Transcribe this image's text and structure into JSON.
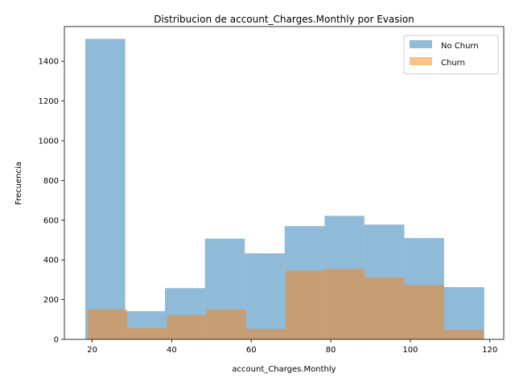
{
  "chart_data": {
    "type": "bar",
    "title": "Distribucion de account_Charges.Monthly por Evasion",
    "xlabel": "account_Charges.Monthly",
    "ylabel": "Frecuencia",
    "xlim": [
      13.0,
      123.5
    ],
    "ylim": [
      0,
      1575
    ],
    "xticks": [
      20,
      40,
      60,
      80,
      100,
      120
    ],
    "yticks": [
      0,
      200,
      400,
      600,
      800,
      1000,
      1200,
      1400
    ],
    "grid": false,
    "legend_position": "top-right",
    "series": [
      {
        "name": "No Churn",
        "color": "#1f77b4",
        "opacity": 0.5,
        "bins": [
          {
            "x0": 18.25,
            "x1": 28.3,
            "value": 1513
          },
          {
            "x0": 28.3,
            "x1": 38.3,
            "value": 142
          },
          {
            "x0": 38.3,
            "x1": 48.35,
            "value": 258
          },
          {
            "x0": 48.35,
            "x1": 58.4,
            "value": 507
          },
          {
            "x0": 58.4,
            "x1": 68.4,
            "value": 433
          },
          {
            "x0": 68.4,
            "x1": 78.45,
            "value": 570
          },
          {
            "x0": 78.45,
            "x1": 88.45,
            "value": 622
          },
          {
            "x0": 88.45,
            "x1": 98.5,
            "value": 578
          },
          {
            "x0": 98.5,
            "x1": 108.5,
            "value": 510
          },
          {
            "x0": 108.5,
            "x1": 118.6,
            "value": 263
          }
        ]
      },
      {
        "name": "Churn",
        "color": "#ff7f0e",
        "opacity": 0.5,
        "bins": [
          {
            "x0": 18.85,
            "x1": 28.8,
            "value": 152
          },
          {
            "x0": 28.8,
            "x1": 38.8,
            "value": 57
          },
          {
            "x0": 38.8,
            "x1": 48.7,
            "value": 122
          },
          {
            "x0": 48.7,
            "x1": 58.7,
            "value": 150
          },
          {
            "x0": 58.7,
            "x1": 68.6,
            "value": 52
          },
          {
            "x0": 68.6,
            "x1": 78.6,
            "value": 346
          },
          {
            "x0": 78.6,
            "x1": 88.55,
            "value": 355
          },
          {
            "x0": 88.55,
            "x1": 98.5,
            "value": 312
          },
          {
            "x0": 98.5,
            "x1": 108.5,
            "value": 274
          },
          {
            "x0": 108.5,
            "x1": 118.35,
            "value": 48
          }
        ]
      }
    ]
  }
}
